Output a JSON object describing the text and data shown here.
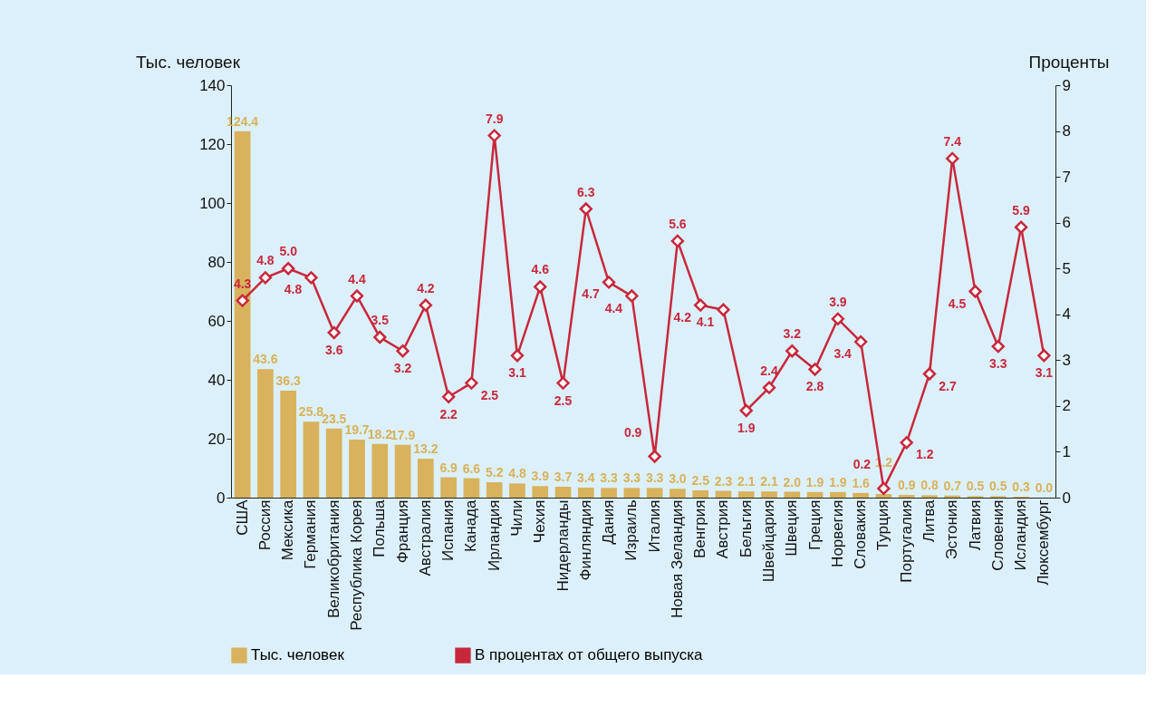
{
  "chart_data": {
    "type": "bar",
    "ylabel": "Тыс. человек",
    "y2label": "Проценты",
    "categories": [
      "США",
      "Россия",
      "Мексика",
      "Германия",
      "Великобритания",
      "Республика Корея",
      "Польша",
      "Франция",
      "Австралия",
      "Испания",
      "Канада",
      "Ирландия",
      "Чили",
      "Чехия",
      "Нидерланды",
      "Финляндия",
      "Дания",
      "Израиль",
      "Италия",
      "Новая Зеландия",
      "Венгрия",
      "Австрия",
      "Бельгия",
      "Швейцария",
      "Швеция",
      "Греция",
      "Норвегия",
      "Словакия",
      "Турция",
      "Португалия",
      "Литва",
      "Эстония",
      "Латвия",
      "Словения",
      "Исландия",
      "Люксембург"
    ],
    "series": [
      {
        "name": "Тыс. человек",
        "color": "#d8b25c",
        "values": [
          124.4,
          43.6,
          36.3,
          25.8,
          23.5,
          19.7,
          18.2,
          17.9,
          13.2,
          6.9,
          6.6,
          5.2,
          4.8,
          3.9,
          3.7,
          3.4,
          3.3,
          3.3,
          3.3,
          3.0,
          2.5,
          2.3,
          2.1,
          2.1,
          2.0,
          1.9,
          1.9,
          1.6,
          1.2,
          0.9,
          0.8,
          0.7,
          0.5,
          0.5,
          0.3,
          0.0
        ],
        "value_labels": [
          "124.4",
          "43.6",
          "36.3",
          "25.8",
          "23.5",
          "19.7",
          "18.2",
          "17.9",
          "13.2",
          "6.9",
          "6.6",
          "5.2",
          "4.8",
          "3.9",
          "3.7",
          "3.4",
          "3.3",
          "3.3",
          "3.3",
          "3.0",
          "2.5",
          "2.3",
          "2.1",
          "2.1",
          "2.0",
          "1.9",
          "1.9",
          "1.6",
          "1.2",
          "0.9",
          "0.8",
          "0.7",
          "0.5",
          "0.5",
          "0.3",
          "0.0"
        ]
      },
      {
        "name": "В процентах от общего выпуска",
        "type": "line",
        "axis": "y2",
        "color": "#c8283c",
        "values": [
          4.3,
          4.8,
          5.0,
          4.8,
          3.6,
          4.4,
          3.5,
          3.2,
          4.2,
          2.2,
          2.5,
          7.9,
          3.1,
          4.6,
          2.5,
          6.3,
          4.7,
          4.4,
          0.9,
          5.6,
          4.2,
          4.1,
          1.9,
          2.4,
          3.2,
          2.8,
          3.9,
          3.4,
          0.2,
          1.2,
          2.7,
          7.4,
          4.5,
          3.3,
          5.9,
          3.1
        ],
        "value_labels": [
          "4.3",
          "4.8",
          "5.0",
          "4.8",
          "3.6",
          "4.4",
          "3.5",
          "3.2",
          "4.2",
          "2.2",
          "2.5",
          "7.9",
          "3.1",
          "4.6",
          "2.5",
          "6.3",
          "4.7",
          "4.4",
          "0.9",
          "5.6",
          "4.2",
          "4.1",
          "1.9",
          "2.4",
          "3.2",
          "2.8",
          "3.9",
          "3.4",
          "0.2",
          "1.2",
          "2.7",
          "7.4",
          "4.5",
          "3.3",
          "5.9",
          "3.1"
        ]
      }
    ],
    "ylim": [
      0,
      140
    ],
    "yticks": [
      0,
      20,
      40,
      60,
      80,
      100,
      120,
      140
    ],
    "y2lim": [
      0,
      9
    ],
    "y2ticks": [
      0,
      1,
      2,
      3,
      4,
      5,
      6,
      7,
      8,
      9
    ],
    "grid": false,
    "legend": "bottom",
    "marker": "diamond",
    "line_style": "solid"
  }
}
